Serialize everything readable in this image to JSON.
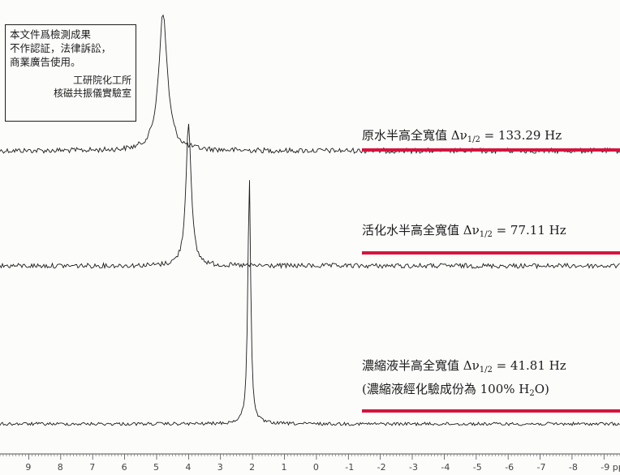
{
  "chart_data": {
    "type": "line",
    "xlabel": "",
    "x_unit": "ppm",
    "xlim": [
      9.9,
      -9.5
    ],
    "x_reversed": true,
    "ticks": [
      9,
      8,
      7,
      6,
      5,
      4,
      3,
      2,
      1,
      0,
      -1,
      -2,
      -3,
      -4,
      -5,
      -6,
      -7,
      -8,
      -9
    ],
    "tick_labels": [
      "9",
      "8",
      "7",
      "6",
      "5",
      "4",
      "3",
      "2",
      "1",
      "0",
      "-1",
      "-2",
      "-3",
      "-4",
      "-5",
      "-6",
      "-7",
      "-8",
      "-9 ppm"
    ],
    "series": [
      {
        "label_text": "原水半高全寬值 Δν",
        "label_sub": "1/2",
        "label_tail": " = 133.29 Hz",
        "peak_ppm": 4.8,
        "fwhm_hz": 133.29,
        "color": "#1c1c1c"
      },
      {
        "label_text": "活化水半高全寬值 Δν",
        "label_sub": "1/2",
        "label_tail": " = 77.11 Hz",
        "peak_ppm": 4.0,
        "fwhm_hz": 77.11,
        "color": "#1c1c1c"
      },
      {
        "label_text": "濃縮液半高全寬值 Δν",
        "label_sub": "1/2",
        "label_tail": " = 41.81 Hz",
        "note_pre": "(濃縮液經化驗成份為 100% H",
        "note_sub": "2",
        "note_post": "O)",
        "peak_ppm": 2.1,
        "fwhm_hz": 41.81,
        "color": "#1c1c1c"
      }
    ],
    "highlight_color": "#d3153e",
    "grid": false
  },
  "stamp": {
    "lines": [
      "本文件爲檢測成果",
      "不作認証，法律訴訟，",
      "商業廣告使用。"
    ],
    "org": "工研院化工所",
    "lab": "核磁共振儀實驗室"
  }
}
